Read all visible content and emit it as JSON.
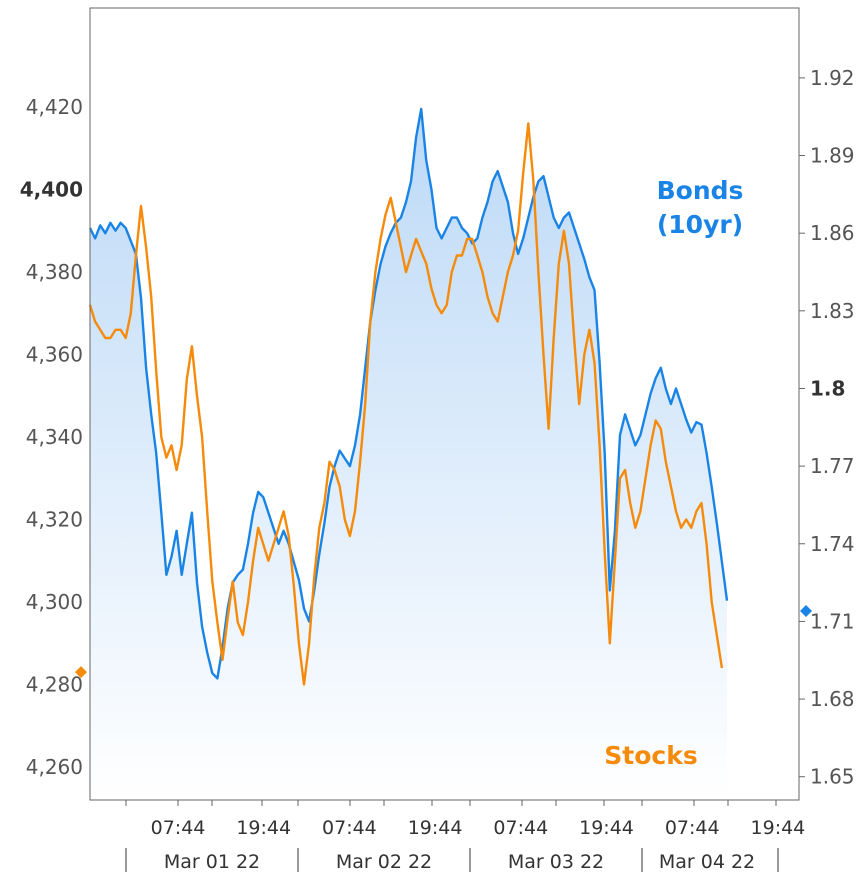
{
  "chart_data": {
    "type": "line",
    "title": "",
    "left_axis": {
      "label": "",
      "ylim": [
        4252,
        4444
      ],
      "ticks": [
        "4,260",
        "4,280",
        "4,300",
        "4,320",
        "4,340",
        "4,360",
        "4,380",
        "4,400",
        "4,420"
      ],
      "tick_values": [
        4260,
        4280,
        4300,
        4320,
        4340,
        4360,
        4380,
        4400,
        4420
      ],
      "bold_tick": "4,400",
      "latest_marker": 4283
    },
    "right_axis": {
      "label": "",
      "ylim": [
        1.641,
        1.947
      ],
      "ticks": [
        "1.65",
        "1.68",
        "1.71",
        "1.74",
        "1.77",
        "1.8",
        "1.83",
        "1.86",
        "1.89",
        "1.92"
      ],
      "tick_values": [
        1.65,
        1.68,
        1.71,
        1.74,
        1.77,
        1.8,
        1.83,
        1.86,
        1.89,
        1.92
      ],
      "bold_tick": "1.8",
      "latest_marker": 1.714
    },
    "x_ticks": [
      "07:44",
      "19:44",
      "07:44",
      "19:44",
      "07:44",
      "19:44",
      "07:44",
      "19:44"
    ],
    "day_labels": [
      "Mar 01 22",
      "Mar 02 22",
      "Mar 03 22",
      "Mar 04 22"
    ],
    "grid": false,
    "series": [
      {
        "name": "Bonds\n(10yr)",
        "label_lines": [
          "Bonds",
          "(10yr)"
        ],
        "axis": "right",
        "color": "#1a84e6",
        "area_fill": true,
        "points": [
          [
            0.0,
            1.862
          ],
          [
            0.5,
            1.858
          ],
          [
            1.0,
            1.863
          ],
          [
            1.5,
            1.86
          ],
          [
            2.0,
            1.864
          ],
          [
            2.5,
            1.861
          ],
          [
            3.0,
            1.864
          ],
          [
            3.5,
            1.862
          ],
          [
            4.0,
            1.857
          ],
          [
            4.5,
            1.852
          ],
          [
            5.0,
            1.835
          ],
          [
            5.5,
            1.808
          ],
          [
            6.0,
            1.79
          ],
          [
            6.5,
            1.775
          ],
          [
            7.0,
            1.752
          ],
          [
            7.5,
            1.728
          ],
          [
            8.0,
            1.735
          ],
          [
            8.5,
            1.745
          ],
          [
            9.0,
            1.728
          ],
          [
            9.5,
            1.74
          ],
          [
            10.0,
            1.752
          ],
          [
            10.5,
            1.725
          ],
          [
            11.0,
            1.708
          ],
          [
            11.5,
            1.698
          ],
          [
            12.0,
            1.69
          ],
          [
            12.5,
            1.688
          ],
          [
            13.0,
            1.7
          ],
          [
            13.5,
            1.715
          ],
          [
            14.0,
            1.725
          ],
          [
            14.5,
            1.728
          ],
          [
            15.0,
            1.73
          ],
          [
            15.5,
            1.74
          ],
          [
            16.0,
            1.752
          ],
          [
            16.5,
            1.76
          ],
          [
            17.0,
            1.758
          ],
          [
            17.5,
            1.752
          ],
          [
            18.0,
            1.746
          ],
          [
            18.5,
            1.74
          ],
          [
            19.0,
            1.745
          ],
          [
            19.5,
            1.74
          ],
          [
            20.0,
            1.733
          ],
          [
            20.5,
            1.726
          ],
          [
            21.0,
            1.715
          ],
          [
            21.5,
            1.71
          ],
          [
            22.0,
            1.722
          ],
          [
            22.5,
            1.736
          ],
          [
            23.0,
            1.748
          ],
          [
            23.5,
            1.762
          ],
          [
            24.0,
            1.77
          ],
          [
            24.5,
            1.776
          ],
          [
            25.0,
            1.773
          ],
          [
            25.5,
            1.77
          ],
          [
            26.0,
            1.778
          ],
          [
            26.5,
            1.79
          ],
          [
            27.0,
            1.808
          ],
          [
            27.5,
            1.826
          ],
          [
            28.0,
            1.838
          ],
          [
            28.5,
            1.848
          ],
          [
            29.0,
            1.855
          ],
          [
            29.5,
            1.86
          ],
          [
            30.0,
            1.864
          ],
          [
            30.5,
            1.866
          ],
          [
            31.0,
            1.872
          ],
          [
            31.5,
            1.88
          ],
          [
            32.0,
            1.897
          ],
          [
            32.5,
            1.908
          ],
          [
            33.0,
            1.888
          ],
          [
            33.5,
            1.877
          ],
          [
            34.0,
            1.862
          ],
          [
            34.5,
            1.858
          ],
          [
            35.0,
            1.862
          ],
          [
            35.5,
            1.866
          ],
          [
            36.0,
            1.866
          ],
          [
            36.5,
            1.862
          ],
          [
            37.0,
            1.86
          ],
          [
            37.5,
            1.856
          ],
          [
            38.0,
            1.858
          ],
          [
            38.5,
            1.866
          ],
          [
            39.0,
            1.872
          ],
          [
            39.5,
            1.88
          ],
          [
            40.0,
            1.884
          ],
          [
            40.5,
            1.878
          ],
          [
            41.0,
            1.872
          ],
          [
            41.5,
            1.86
          ],
          [
            42.0,
            1.852
          ],
          [
            42.5,
            1.858
          ],
          [
            43.0,
            1.866
          ],
          [
            43.5,
            1.874
          ],
          [
            44.0,
            1.88
          ],
          [
            44.5,
            1.882
          ],
          [
            45.0,
            1.874
          ],
          [
            45.5,
            1.866
          ],
          [
            46.0,
            1.862
          ],
          [
            46.5,
            1.866
          ],
          [
            47.0,
            1.868
          ],
          [
            47.5,
            1.862
          ],
          [
            48.0,
            1.856
          ],
          [
            48.5,
            1.85
          ],
          [
            49.0,
            1.843
          ],
          [
            49.5,
            1.838
          ],
          [
            50.0,
            1.81
          ],
          [
            50.5,
            1.775
          ],
          [
            51.0,
            1.722
          ],
          [
            51.5,
            1.745
          ],
          [
            52.0,
            1.782
          ],
          [
            52.5,
            1.79
          ],
          [
            53.0,
            1.784
          ],
          [
            53.5,
            1.778
          ],
          [
            54.0,
            1.782
          ],
          [
            54.5,
            1.79
          ],
          [
            55.0,
            1.798
          ],
          [
            55.5,
            1.804
          ],
          [
            56.0,
            1.808
          ],
          [
            56.5,
            1.8
          ],
          [
            57.0,
            1.794
          ],
          [
            57.5,
            1.8
          ],
          [
            58.0,
            1.794
          ],
          [
            58.5,
            1.788
          ],
          [
            59.0,
            1.783
          ],
          [
            59.5,
            1.787
          ],
          [
            60.0,
            1.786
          ],
          [
            60.5,
            1.775
          ],
          [
            61.0,
            1.762
          ],
          [
            61.5,
            1.748
          ],
          [
            62.0,
            1.733
          ],
          [
            62.5,
            1.718
          ]
        ]
      },
      {
        "name": "Stocks",
        "label_lines": [
          "Stocks"
        ],
        "axis": "left",
        "color": "#f58a0b",
        "area_fill": false,
        "points": [
          [
            0.0,
            4372
          ],
          [
            0.5,
            4368
          ],
          [
            1.0,
            4366
          ],
          [
            1.5,
            4364
          ],
          [
            2.0,
            4364
          ],
          [
            2.5,
            4366
          ],
          [
            3.0,
            4366
          ],
          [
            3.5,
            4364
          ],
          [
            4.0,
            4370
          ],
          [
            4.5,
            4384
          ],
          [
            5.0,
            4396
          ],
          [
            5.5,
            4386
          ],
          [
            6.0,
            4374
          ],
          [
            6.5,
            4356
          ],
          [
            7.0,
            4340
          ],
          [
            7.5,
            4335
          ],
          [
            8.0,
            4338
          ],
          [
            8.5,
            4332
          ],
          [
            9.0,
            4338
          ],
          [
            9.5,
            4354
          ],
          [
            10.0,
            4362
          ],
          [
            10.5,
            4350
          ],
          [
            11.0,
            4340
          ],
          [
            11.5,
            4322
          ],
          [
            12.0,
            4305
          ],
          [
            12.5,
            4295
          ],
          [
            13.0,
            4286
          ],
          [
            13.5,
            4296
          ],
          [
            14.0,
            4305
          ],
          [
            14.5,
            4295
          ],
          [
            15.0,
            4292
          ],
          [
            15.5,
            4300
          ],
          [
            16.0,
            4310
          ],
          [
            16.5,
            4318
          ],
          [
            17.0,
            4314
          ],
          [
            17.5,
            4310
          ],
          [
            18.0,
            4314
          ],
          [
            18.5,
            4318
          ],
          [
            19.0,
            4322
          ],
          [
            19.5,
            4316
          ],
          [
            20.0,
            4304
          ],
          [
            20.5,
            4290
          ],
          [
            21.0,
            4280
          ],
          [
            21.5,
            4290
          ],
          [
            22.0,
            4306
          ],
          [
            22.5,
            4318
          ],
          [
            23.0,
            4324
          ],
          [
            23.5,
            4334
          ],
          [
            24.0,
            4332
          ],
          [
            24.5,
            4328
          ],
          [
            25.0,
            4320
          ],
          [
            25.5,
            4316
          ],
          [
            26.0,
            4322
          ],
          [
            26.5,
            4334
          ],
          [
            27.0,
            4348
          ],
          [
            27.5,
            4368
          ],
          [
            28.0,
            4380
          ],
          [
            28.5,
            4388
          ],
          [
            29.0,
            4394
          ],
          [
            29.5,
            4398
          ],
          [
            30.0,
            4392
          ],
          [
            30.5,
            4386
          ],
          [
            31.0,
            4380
          ],
          [
            31.5,
            4384
          ],
          [
            32.0,
            4388
          ],
          [
            32.5,
            4385
          ],
          [
            33.0,
            4382
          ],
          [
            33.5,
            4376
          ],
          [
            34.0,
            4372
          ],
          [
            34.5,
            4370
          ],
          [
            35.0,
            4372
          ],
          [
            35.5,
            4380
          ],
          [
            36.0,
            4384
          ],
          [
            36.5,
            4384
          ],
          [
            37.0,
            4388
          ],
          [
            37.5,
            4388
          ],
          [
            38.0,
            4384
          ],
          [
            38.5,
            4380
          ],
          [
            39.0,
            4374
          ],
          [
            39.5,
            4370
          ],
          [
            40.0,
            4368
          ],
          [
            40.5,
            4374
          ],
          [
            41.0,
            4380
          ],
          [
            41.5,
            4384
          ],
          [
            42.0,
            4390
          ],
          [
            42.5,
            4404
          ],
          [
            43.0,
            4416
          ],
          [
            43.5,
            4402
          ],
          [
            44.0,
            4380
          ],
          [
            44.5,
            4360
          ],
          [
            45.0,
            4342
          ],
          [
            45.5,
            4364
          ],
          [
            46.0,
            4382
          ],
          [
            46.5,
            4390
          ],
          [
            47.0,
            4382
          ],
          [
            47.5,
            4364
          ],
          [
            48.0,
            4348
          ],
          [
            48.5,
            4360
          ],
          [
            49.0,
            4366
          ],
          [
            49.5,
            4358
          ],
          [
            50.0,
            4338
          ],
          [
            50.5,
            4312
          ],
          [
            51.0,
            4290
          ],
          [
            51.5,
            4310
          ],
          [
            52.0,
            4330
          ],
          [
            52.5,
            4332
          ],
          [
            53.0,
            4324
          ],
          [
            53.5,
            4318
          ],
          [
            54.0,
            4322
          ],
          [
            54.5,
            4330
          ],
          [
            55.0,
            4338
          ],
          [
            55.5,
            4344
          ],
          [
            56.0,
            4342
          ],
          [
            56.5,
            4334
          ],
          [
            57.0,
            4328
          ],
          [
            57.5,
            4322
          ],
          [
            58.0,
            4318
          ],
          [
            58.5,
            4320
          ],
          [
            59.0,
            4318
          ],
          [
            59.5,
            4322
          ],
          [
            60.0,
            4324
          ],
          [
            60.5,
            4314
          ],
          [
            61.0,
            4300
          ],
          [
            61.5,
            4292
          ],
          [
            62.0,
            4284
          ]
        ]
      }
    ]
  }
}
